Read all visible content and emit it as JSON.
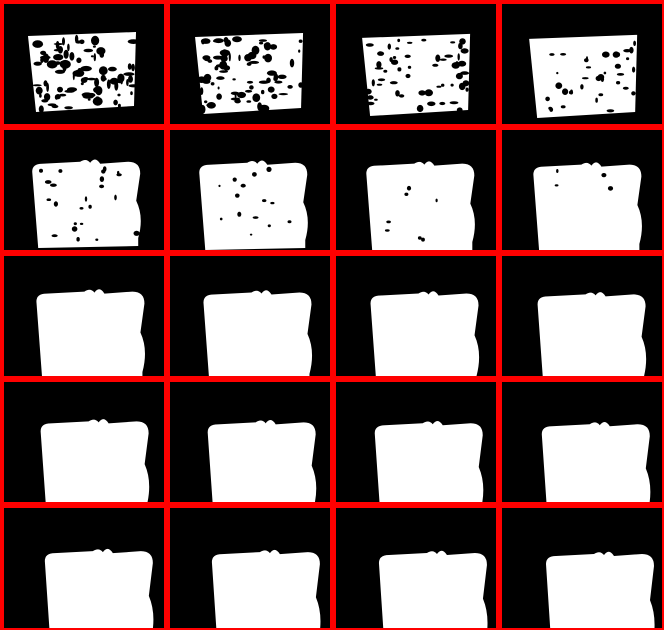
{
  "grid": {
    "rows": 5,
    "cols": 4,
    "border_color": "#ff0000",
    "background_color": "#000000",
    "mask_color": "#ffffff",
    "frames": [
      {
        "row": 1,
        "col": 1,
        "stage": 1,
        "noise": 1.0
      },
      {
        "row": 1,
        "col": 2,
        "stage": 2,
        "noise": 0.85
      },
      {
        "row": 1,
        "col": 3,
        "stage": 3,
        "noise": 0.6
      },
      {
        "row": 1,
        "col": 4,
        "stage": 4,
        "noise": 0.4
      },
      {
        "row": 2,
        "col": 1,
        "stage": 5,
        "noise": 0.25
      },
      {
        "row": 2,
        "col": 2,
        "stage": 6,
        "noise": 0.15
      },
      {
        "row": 2,
        "col": 3,
        "stage": 7,
        "noise": 0.08
      },
      {
        "row": 2,
        "col": 4,
        "stage": 8,
        "noise": 0.04
      },
      {
        "row": 3,
        "col": 1,
        "stage": 9,
        "noise": 0.0
      },
      {
        "row": 3,
        "col": 2,
        "stage": 10,
        "noise": 0.0
      },
      {
        "row": 3,
        "col": 3,
        "stage": 11,
        "noise": 0.0
      },
      {
        "row": 3,
        "col": 4,
        "stage": 12,
        "noise": 0.0
      },
      {
        "row": 4,
        "col": 1,
        "stage": 13,
        "noise": 0.0
      },
      {
        "row": 4,
        "col": 2,
        "stage": 14,
        "noise": 0.0
      },
      {
        "row": 4,
        "col": 3,
        "stage": 15,
        "noise": 0.0
      },
      {
        "row": 4,
        "col": 4,
        "stage": 16,
        "noise": 0.0
      },
      {
        "row": 5,
        "col": 1,
        "stage": 17,
        "noise": 0.0
      },
      {
        "row": 5,
        "col": 2,
        "stage": 18,
        "noise": 0.0
      },
      {
        "row": 5,
        "col": 3,
        "stage": 19,
        "noise": 0.0
      },
      {
        "row": 5,
        "col": 4,
        "stage": 20,
        "noise": 0.0
      }
    ]
  }
}
